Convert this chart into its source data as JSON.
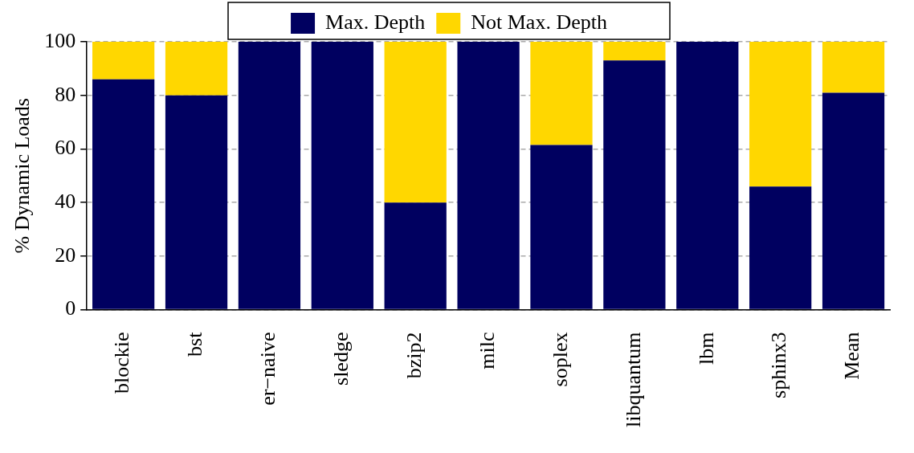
{
  "chart_data": {
    "type": "bar",
    "ylabel": "% Dynamic Loads",
    "stacked": true,
    "categories": [
      "blockie",
      "bst",
      "er−naive",
      "sledge",
      "bzip2",
      "milc",
      "soplex",
      "libquantum",
      "lbm",
      "sphinx3",
      "Mean"
    ],
    "series": [
      {
        "name": "Max. Depth",
        "color": "#000060",
        "values": [
          86,
          80,
          100,
          100,
          40,
          100,
          61.5,
          93,
          100,
          46,
          81
        ]
      },
      {
        "name": "Not Max. Depth",
        "color": "#ffd700",
        "values": [
          14,
          20,
          0,
          0,
          60,
          0,
          38.5,
          7,
          0,
          54,
          19
        ]
      }
    ],
    "ylim": [
      0,
      100
    ],
    "yticks": [
      0,
      20,
      40,
      60,
      80,
      100
    ],
    "grid": "y",
    "legend": "top"
  }
}
